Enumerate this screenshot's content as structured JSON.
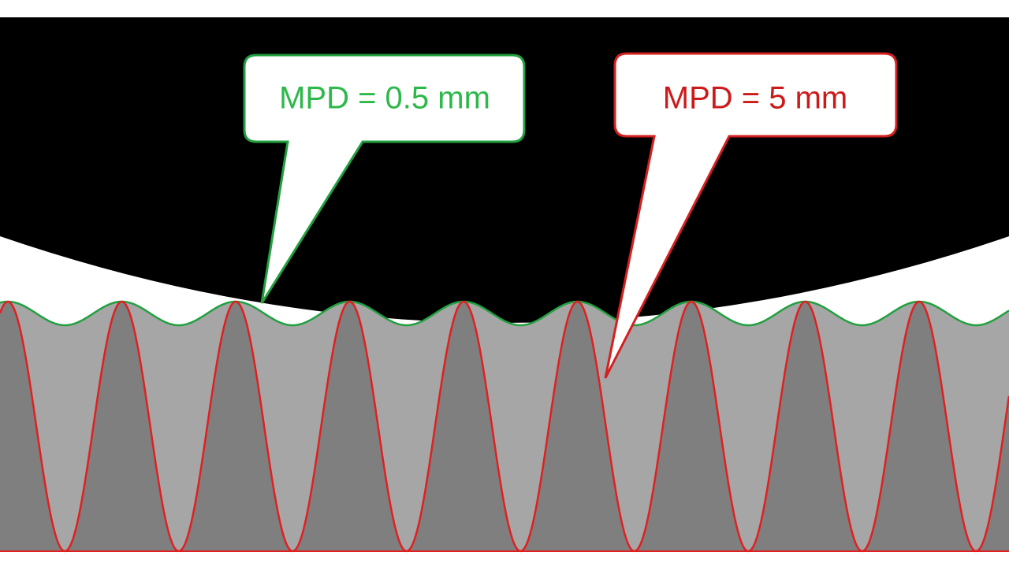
{
  "callouts": [
    {
      "label": "MPD = 0.5 mm"
    },
    {
      "label": "MPD = 5 mm"
    }
  ]
}
